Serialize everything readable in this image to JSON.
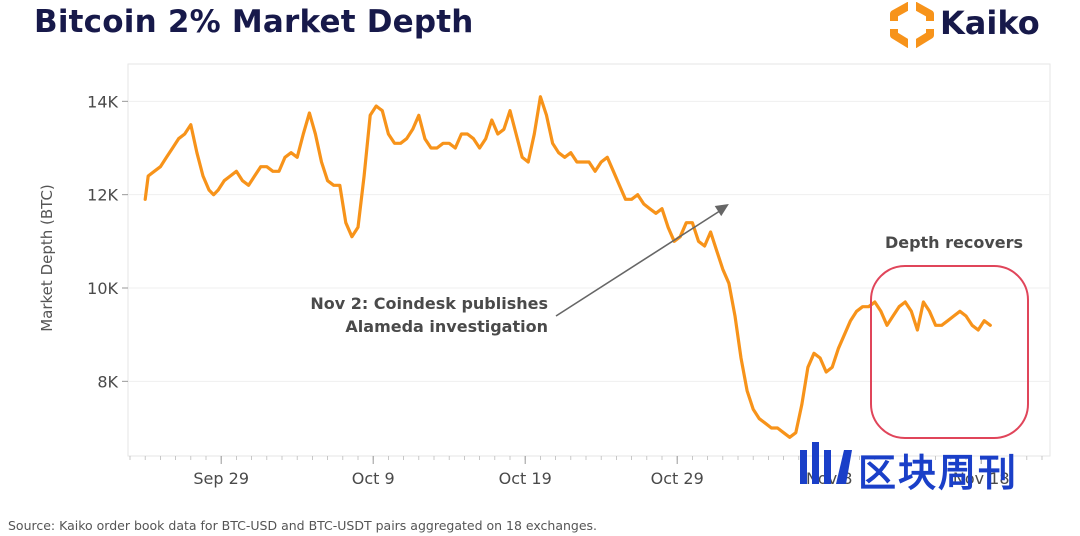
{
  "header": {
    "title": "Bitcoin 2% Market Depth"
  },
  "brand": {
    "name": "Kaiko",
    "color": "#17194a",
    "accent": "#f7931a"
  },
  "footer": {
    "source": "Source: Kaiko order book data for BTC-USD and BTC-USDT pairs aggregated on 18 exchanges."
  },
  "watermark": {
    "text": "区块周刊",
    "color": "#1a3fc8"
  },
  "chart_data": {
    "type": "line",
    "title": "Bitcoin 2% Market Depth",
    "xlabel": "",
    "ylabel": "Market Depth (BTC)",
    "x_start": "Sep 24",
    "x_end": "Nov 19",
    "xlim": [
      0,
      60
    ],
    "ylim": [
      6400,
      14800
    ],
    "grid": true,
    "line_color": "#f7931a",
    "y_ticks": [
      {
        "value": 8000,
        "label": "8K"
      },
      {
        "value": 10000,
        "label": "10K"
      },
      {
        "value": 12000,
        "label": "12K"
      },
      {
        "value": 14000,
        "label": "14K"
      }
    ],
    "x_ticks": [
      {
        "day": 6,
        "label": "Sep 29"
      },
      {
        "day": 16,
        "label": "Oct 9"
      },
      {
        "day": 26,
        "label": "Oct 19"
      },
      {
        "day": 36,
        "label": "Oct 29"
      },
      {
        "day": 46,
        "label": "Nov 8"
      },
      {
        "day": 56,
        "label": "Nov 18"
      }
    ],
    "series": [
      {
        "name": "BTC 2% Market Depth",
        "x": [
          1,
          1.2,
          1.6,
          2,
          2.4,
          2.8,
          3.2,
          3.6,
          4,
          4.4,
          4.8,
          5.2,
          5.5,
          5.8,
          6.2,
          6.6,
          7,
          7.4,
          7.8,
          8.2,
          8.6,
          9,
          9.4,
          9.8,
          10.2,
          10.6,
          11,
          11.4,
          11.8,
          12.2,
          12.6,
          13,
          13.4,
          13.8,
          14.2,
          14.6,
          15,
          15.4,
          15.8,
          16.2,
          16.6,
          17,
          17.4,
          17.8,
          18.2,
          18.6,
          19,
          19.4,
          19.8,
          20.2,
          20.6,
          21,
          21.4,
          21.8,
          22.2,
          22.6,
          23,
          23.4,
          23.8,
          24.2,
          24.6,
          25,
          25.4,
          25.8,
          26.2,
          26.6,
          27,
          27.4,
          27.8,
          28.2,
          28.6,
          29,
          29.4,
          29.8,
          30.2,
          30.6,
          31,
          31.4,
          31.8,
          32.2,
          32.6,
          33,
          33.4,
          33.8,
          34.2,
          34.6,
          35,
          35.4,
          35.8,
          36.2,
          36.6,
          37,
          37.4,
          37.8,
          38.2,
          38.6,
          39,
          39.4,
          39.8,
          40.2,
          40.6,
          41,
          41.4,
          41.8,
          42.2,
          42.6,
          43,
          43.4,
          43.8,
          44.2,
          44.6,
          45,
          45.4,
          45.8,
          46.2,
          46.6,
          47,
          47.4,
          47.8,
          48.2,
          48.6,
          49,
          49.4,
          49.8,
          50.2,
          50.6,
          51,
          51.4,
          51.8,
          52.2,
          52.6,
          53,
          53.4,
          53.8,
          54.2,
          54.6,
          55,
          55.4,
          55.8,
          56.2,
          56.6
        ],
        "values": [
          11900,
          12400,
          12500,
          12600,
          12800,
          13000,
          13200,
          13300,
          13500,
          12900,
          12400,
          12100,
          12000,
          12100,
          12300,
          12400,
          12500,
          12300,
          12200,
          12400,
          12600,
          12600,
          12500,
          12500,
          12800,
          12900,
          12800,
          13300,
          13750,
          13300,
          12700,
          12300,
          12200,
          12200,
          11400,
          11100,
          11300,
          12400,
          13700,
          13900,
          13800,
          13300,
          13100,
          13100,
          13200,
          13400,
          13700,
          13200,
          13000,
          13000,
          13100,
          13100,
          13000,
          13300,
          13300,
          13200,
          13000,
          13200,
          13600,
          13300,
          13400,
          13800,
          13300,
          12800,
          12700,
          13300,
          14100,
          13700,
          13100,
          12900,
          12800,
          12900,
          12700,
          12700,
          12700,
          12500,
          12700,
          12800,
          12500,
          12200,
          11900,
          11900,
          12000,
          11800,
          11700,
          11600,
          11700,
          11300,
          11000,
          11100,
          11400,
          11400,
          11000,
          10900,
          11200,
          10800,
          10400,
          10100,
          9400,
          8500,
          7800,
          7400,
          7200,
          7100,
          7000,
          7000,
          6900,
          6800,
          6900,
          7500,
          8300,
          8600,
          8500,
          8200,
          8300,
          8700,
          9000,
          9300,
          9500,
          9600,
          9600,
          9700,
          9500,
          9200,
          9400,
          9600,
          9700,
          9500,
          9100,
          9700,
          9500,
          9200,
          9200,
          9300,
          9400,
          9500,
          9400,
          9200,
          9100,
          9300,
          9200
        ]
      }
    ],
    "annotations": [
      {
        "lines": [
          "Nov 2: Coindesk publishes",
          "Alameda investigation"
        ],
        "target_day": 39.4,
        "target_value": 11800
      },
      {
        "text": "Depth recovers",
        "region_start_day": 50,
        "region_end_day": 59
      }
    ]
  }
}
